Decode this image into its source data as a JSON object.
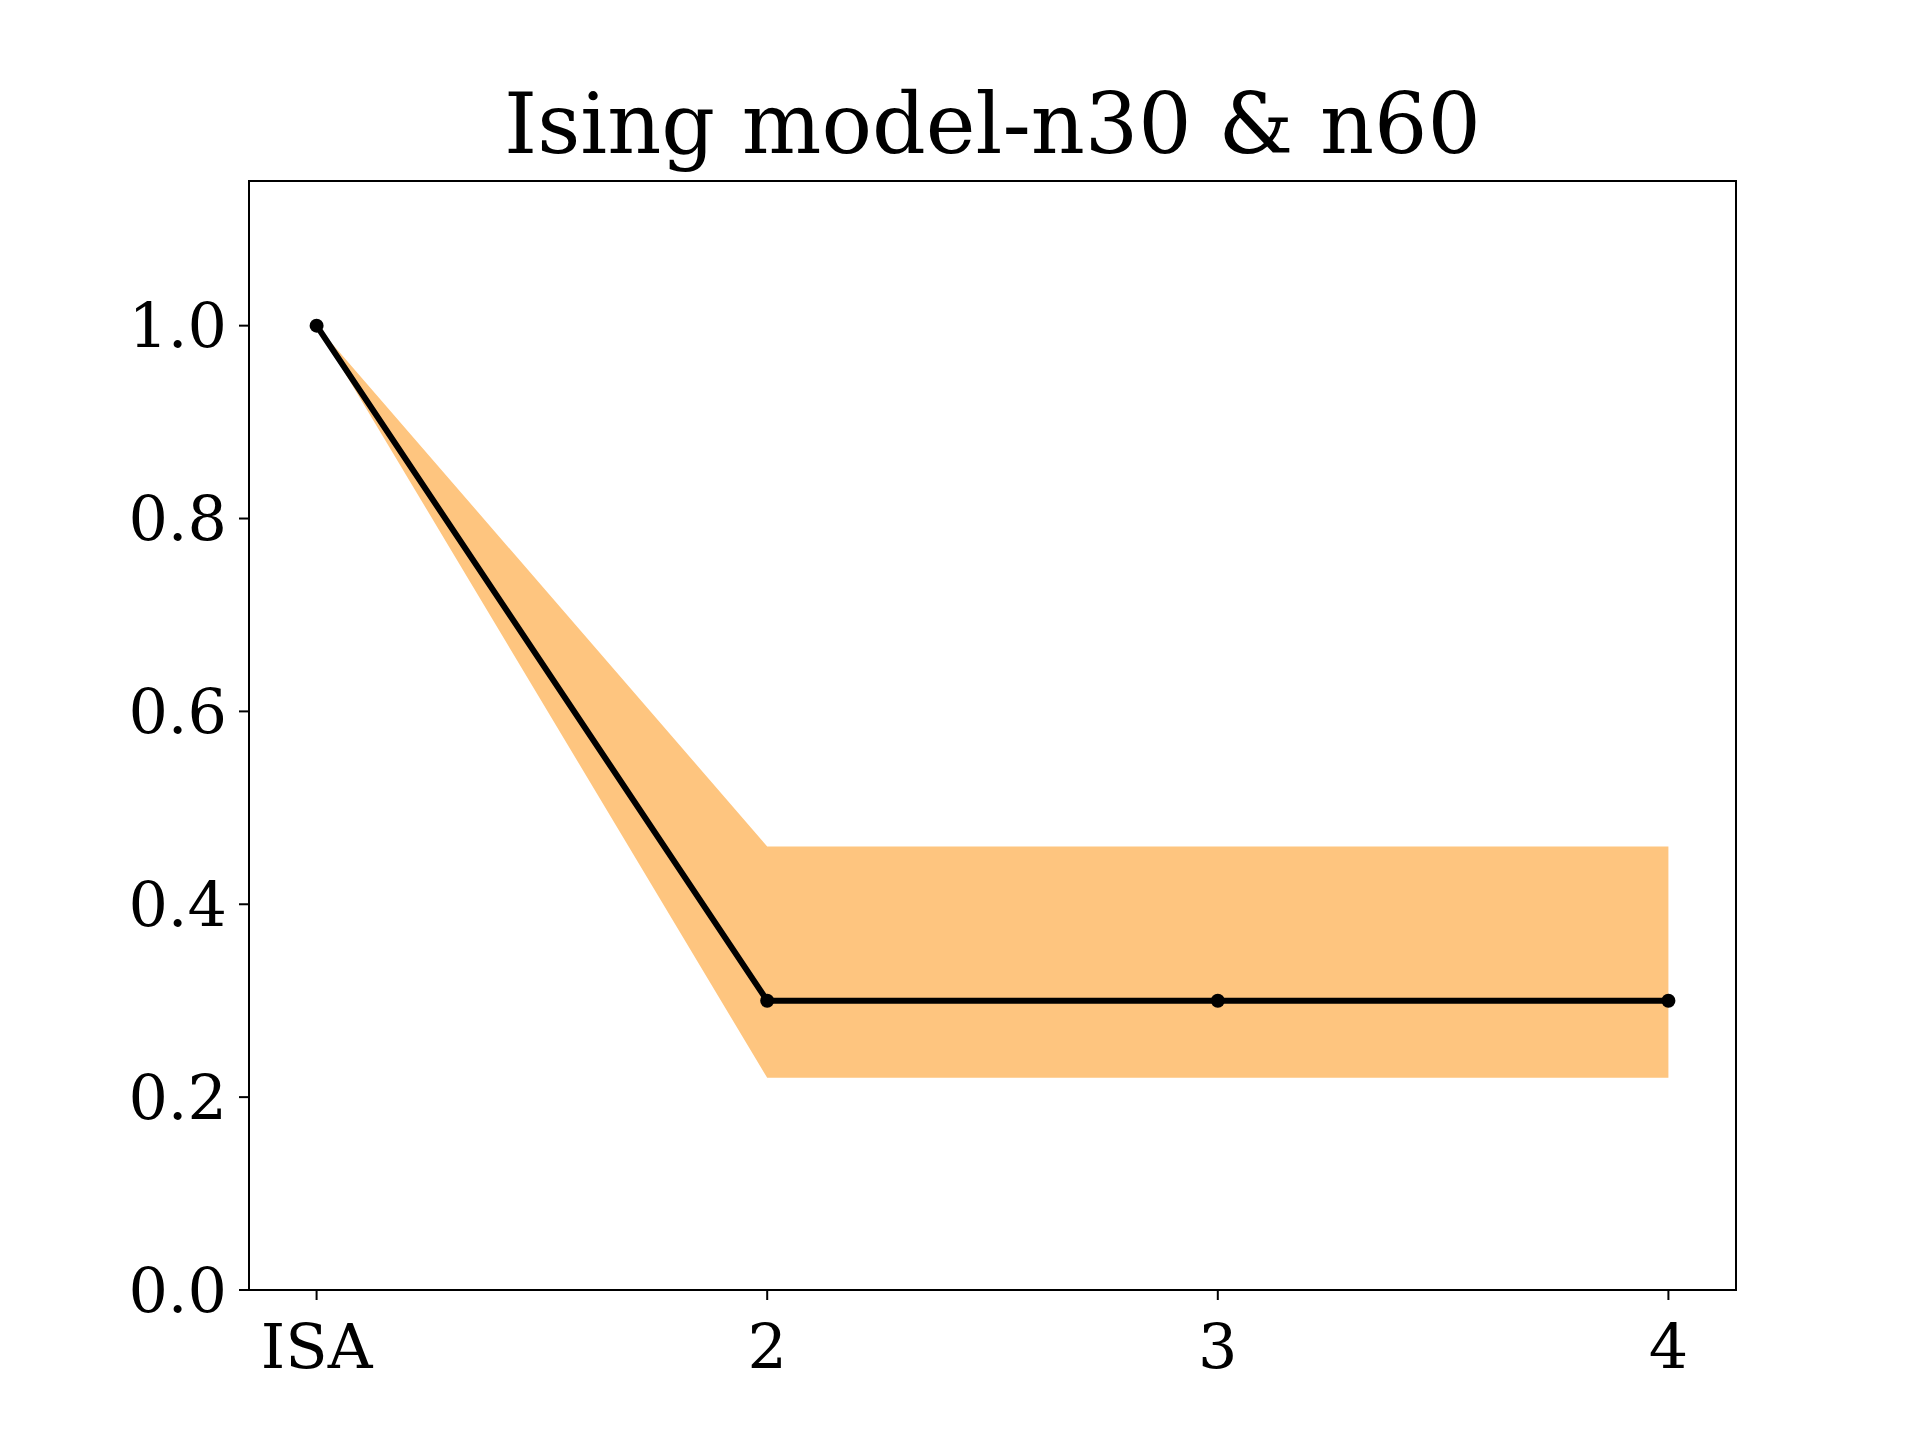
{
  "chart_data": {
    "type": "line",
    "title": "Ising model-n30 & n60",
    "categories": [
      "ISA",
      "2",
      "3",
      "4"
    ],
    "series": [
      {
        "color": "#000000",
        "values": [
          1.0,
          0.3,
          0.3,
          0.3
        ],
        "lower": [
          1.0,
          0.22,
          0.22,
          0.22
        ],
        "upper": [
          1.0,
          0.46,
          0.46,
          0.46
        ]
      }
    ],
    "ylim": [
      0,
      1.15
    ],
    "yticks": [
      {
        "value": 0,
        "label": "0.0"
      },
      {
        "value": 0.2,
        "label": "0.2"
      },
      {
        "value": 0.4,
        "label": "0.4"
      },
      {
        "value": 0.6,
        "label": "0.6"
      },
      {
        "value": 0.8,
        "label": "0.8"
      },
      {
        "value": 1,
        "label": "1.0"
      }
    ],
    "grid": false,
    "marker": "circle",
    "line_style": "solid"
  }
}
